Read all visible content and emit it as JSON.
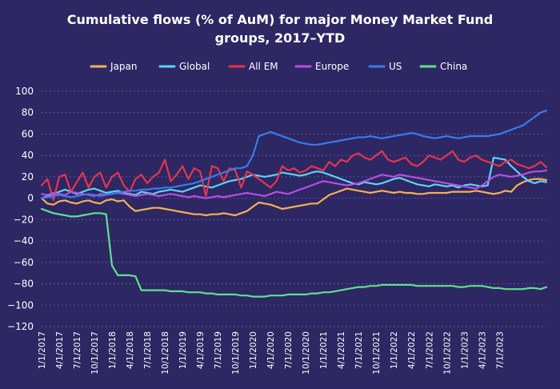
{
  "chart_data": {
    "type": "line",
    "title_lines": [
      "Cumulative flows (% of AuM) for major Money Market Fund",
      "groups, 2017–YTD"
    ],
    "xlabel": "",
    "ylabel": "",
    "ylim": [
      -120,
      100
    ],
    "yticks": [
      "100",
      "80",
      "60",
      "40",
      "20",
      "0",
      "−20",
      "−40",
      "−60",
      "−80",
      "−100",
      "−120"
    ],
    "xticks": [
      "1/1/2017",
      "4/1/2017",
      "7/1/2017",
      "10/1/2017",
      "1/1/2018",
      "4/1/2018",
      "7/1/2018",
      "10/1/2018",
      "1/1/2019",
      "4/1/2019",
      "7/1/2019",
      "10/1/2019",
      "1/1/2020",
      "4/1/2020",
      "7/1/2020",
      "10/1/2020",
      "1/1/2021",
      "4/1/2021",
      "7/1/2021",
      "10/1/2021",
      "1/1/2022",
      "4/1/2022",
      "7/1/2022",
      "10/1/2022",
      "1/1/2023",
      "4/1/2023",
      "7/1/2023"
    ],
    "grid": true,
    "legend_position": "top",
    "x_start": "2017-01",
    "x_step": "month",
    "series": [
      {
        "name": "Japan",
        "color": "#f6b154",
        "values": [
          0,
          -5,
          -6,
          -3,
          -2,
          -4,
          -5,
          -3,
          -2,
          -4,
          -5,
          -2,
          -1,
          -3,
          -2,
          -8,
          -12,
          -11,
          -10,
          -9,
          -9,
          -10,
          -11,
          -12,
          -13,
          -14,
          -15,
          -15,
          -16,
          -15,
          -15,
          -14,
          -15,
          -16,
          -14,
          -12,
          -8,
          -4,
          -5,
          -6,
          -8,
          -10,
          -9,
          -8,
          -7,
          -6,
          -5,
          -5,
          -1,
          3,
          5,
          7,
          9,
          8,
          7,
          6,
          5,
          6,
          7,
          6,
          5,
          6,
          5,
          5,
          4,
          4,
          5,
          5,
          5,
          5,
          6,
          6,
          6,
          6,
          7,
          6,
          5,
          4,
          5,
          7,
          6,
          12,
          15,
          17,
          18,
          18,
          17
        ]
      },
      {
        "name": "Global",
        "color": "#5ed3f3",
        "values": [
          0,
          2,
          4,
          6,
          8,
          6,
          4,
          6,
          8,
          9,
          7,
          5,
          6,
          7,
          5,
          4,
          3,
          6,
          5,
          4,
          6,
          7,
          8,
          7,
          6,
          8,
          10,
          12,
          11,
          10,
          12,
          14,
          16,
          17,
          18,
          20,
          22,
          21,
          20,
          21,
          22,
          24,
          23,
          22,
          21,
          22,
          24,
          25,
          24,
          22,
          20,
          18,
          16,
          14,
          13,
          15,
          14,
          13,
          14,
          16,
          18,
          19,
          17,
          15,
          13,
          12,
          11,
          13,
          12,
          11,
          12,
          10,
          12,
          13,
          12,
          11,
          12,
          38,
          37,
          36,
          30,
          25,
          20,
          16,
          14,
          16,
          15
        ]
      },
      {
        "name": "All EM",
        "color": "#e5354e",
        "values": [
          12,
          18,
          -2,
          20,
          22,
          6,
          15,
          24,
          10,
          20,
          24,
          10,
          20,
          24,
          12,
          6,
          18,
          22,
          14,
          20,
          24,
          36,
          16,
          22,
          30,
          18,
          28,
          25,
          2,
          30,
          28,
          16,
          28,
          26,
          10,
          25,
          22,
          18,
          14,
          10,
          16,
          30,
          26,
          28,
          24,
          26,
          30,
          28,
          26,
          34,
          30,
          36,
          34,
          40,
          42,
          38,
          36,
          40,
          44,
          36,
          34,
          36,
          38,
          32,
          30,
          34,
          40,
          38,
          36,
          40,
          44,
          36,
          34,
          38,
          40,
          36,
          34,
          32,
          30,
          34,
          36,
          32,
          30,
          28,
          30,
          34,
          29
        ]
      },
      {
        "name": "Europe",
        "color": "#b84fe0",
        "values": [
          4,
          3,
          5,
          4,
          3,
          6,
          5,
          4,
          3,
          2,
          4,
          3,
          4,
          5,
          4,
          3,
          2,
          3,
          4,
          3,
          2,
          3,
          4,
          3,
          2,
          1,
          2,
          1,
          0,
          1,
          2,
          1,
          2,
          3,
          4,
          5,
          4,
          3,
          2,
          4,
          6,
          5,
          4,
          6,
          8,
          10,
          12,
          14,
          16,
          15,
          14,
          13,
          12,
          13,
          14,
          16,
          18,
          20,
          22,
          21,
          20,
          22,
          21,
          20,
          19,
          18,
          17,
          16,
          15,
          14,
          13,
          12,
          11,
          10,
          9,
          12,
          16,
          20,
          22,
          21,
          20,
          21,
          22,
          24,
          25,
          25,
          26
        ]
      },
      {
        "name": "US",
        "color": "#3a7bea",
        "values": [
          0,
          1,
          2,
          3,
          2,
          1,
          2,
          3,
          4,
          3,
          2,
          3,
          4,
          5,
          6,
          7,
          7,
          8,
          8,
          9,
          9,
          10,
          10,
          11,
          12,
          13,
          14,
          16,
          18,
          20,
          22,
          24,
          26,
          28,
          28,
          30,
          40,
          58,
          60,
          62,
          60,
          58,
          56,
          54,
          52,
          51,
          50,
          50,
          51,
          52,
          53,
          54,
          55,
          56,
          57,
          57,
          58,
          57,
          56,
          57,
          58,
          59,
          60,
          61,
          60,
          58,
          57,
          56,
          57,
          58,
          57,
          56,
          57,
          58,
          58,
          58,
          58,
          59,
          60,
          62,
          64,
          66,
          68,
          72,
          76,
          80,
          82
        ]
      },
      {
        "name": "China",
        "color": "#5fe08f",
        "values": [
          -10,
          -12,
          -14,
          -15,
          -16,
          -17,
          -17,
          -16,
          -15,
          -14,
          -14,
          -15,
          -63,
          -72,
          -72,
          -72,
          -73,
          -86,
          -86,
          -86,
          -86,
          -86,
          -87,
          -87,
          -87,
          -88,
          -88,
          -88,
          -89,
          -89,
          -90,
          -90,
          -90,
          -90,
          -91,
          -91,
          -92,
          -92,
          -92,
          -91,
          -91,
          -91,
          -90,
          -90,
          -90,
          -90,
          -89,
          -89,
          -88,
          -88,
          -87,
          -86,
          -85,
          -84,
          -83,
          -83,
          -82,
          -82,
          -81,
          -81,
          -81,
          -81,
          -81,
          -81,
          -82,
          -82,
          -82,
          -82,
          -82,
          -82,
          -82,
          -83,
          -83,
          -82,
          -82,
          -82,
          -83,
          -84,
          -84,
          -85,
          -85,
          -85,
          -85,
          -84,
          -84,
          -85,
          -83
        ]
      }
    ]
  }
}
